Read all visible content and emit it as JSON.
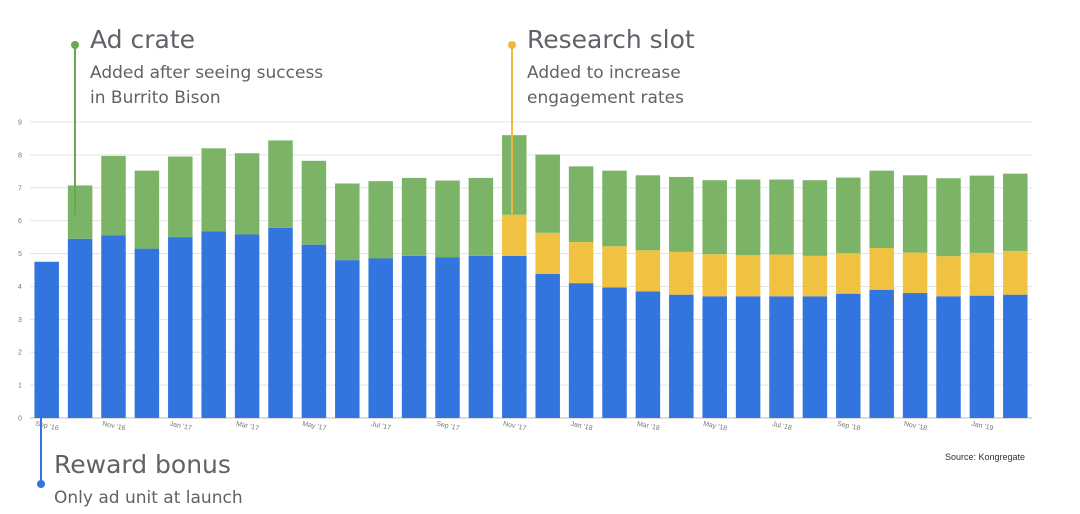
{
  "chart_data": {
    "type": "bar",
    "stacked": true,
    "categories": [
      "Sep '16",
      "",
      "Nov '16",
      "",
      "Jan '17",
      "",
      "Mar '17",
      "",
      "May '17",
      "",
      "Jul '17",
      "",
      "Sep '17",
      "",
      "Nov '17",
      "",
      "Jan '18",
      "",
      "Mar '18",
      "",
      "May '18",
      "",
      "Jul '18",
      "",
      "Sep '18",
      "",
      "Nov '18",
      "",
      "Jan '19",
      ""
    ],
    "series": [
      {
        "name": "Reward bonus",
        "color": "#3375de",
        "values": [
          4.75,
          5.45,
          5.55,
          5.15,
          5.5,
          5.68,
          5.58,
          5.78,
          5.27,
          4.8,
          4.85,
          4.93,
          4.88,
          4.93,
          4.93,
          4.38,
          4.1,
          3.97,
          3.85,
          3.75,
          3.7,
          3.7,
          3.7,
          3.7,
          3.78,
          3.9,
          3.8,
          3.7,
          3.72,
          3.75
        ]
      },
      {
        "name": "Research slot",
        "color": "#f0c242",
        "values": [
          0,
          0,
          0,
          0,
          0,
          0,
          0,
          0,
          0,
          0,
          0,
          0,
          0,
          0,
          1.25,
          1.25,
          1.25,
          1.25,
          1.25,
          1.3,
          1.28,
          1.25,
          1.27,
          1.23,
          1.23,
          1.27,
          1.23,
          1.22,
          1.3,
          1.33
        ]
      },
      {
        "name": "Ad crate",
        "color": "#7bb466",
        "values": [
          0,
          1.62,
          2.42,
          2.37,
          2.45,
          2.52,
          2.47,
          2.66,
          2.55,
          2.33,
          2.35,
          2.37,
          2.34,
          2.37,
          2.42,
          2.38,
          2.3,
          2.3,
          2.28,
          2.28,
          2.25,
          2.3,
          2.28,
          2.3,
          2.3,
          2.35,
          2.35,
          2.37,
          2.35,
          2.35
        ]
      }
    ],
    "yticks": [
      "0",
      "1",
      "2",
      "3",
      "4",
      "5",
      "6",
      "7",
      "8",
      "9"
    ],
    "ylim": [
      0,
      9
    ],
    "grid": true,
    "legend": "none"
  },
  "annotations": {
    "ad_crate": {
      "title": "Ad crate",
      "line1": "Added after seeing success",
      "line2": "in Burrito Bison",
      "color": "#6aa84f"
    },
    "research_slot": {
      "title": "Research slot",
      "line1": "Added to increase",
      "line2": "engagement rates",
      "color": "#f0b840"
    },
    "reward_bonus": {
      "title": "Reward bonus",
      "line1": "Only ad unit at launch",
      "color": "#3375de"
    }
  },
  "source": "Source: Kongregate"
}
